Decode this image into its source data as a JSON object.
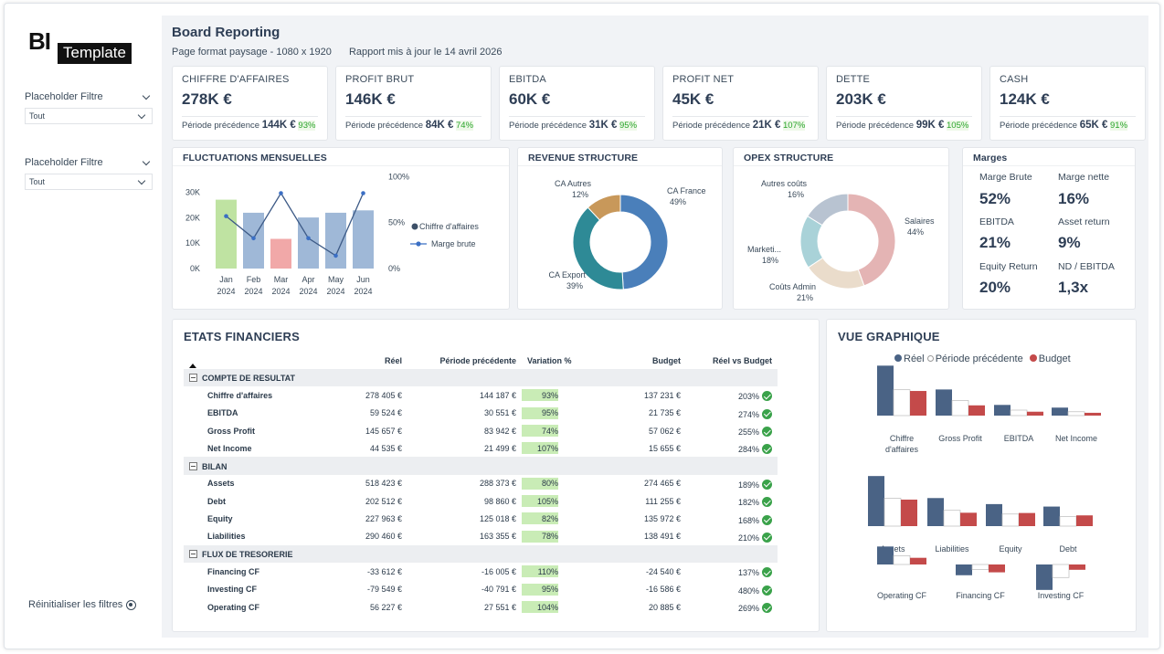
{
  "logo": {
    "bi": "BI",
    "template": "Template"
  },
  "filters": [
    {
      "label": "Placeholder Filtre",
      "value": "Tout"
    },
    {
      "label": "Placeholder Filtre",
      "value": "Tout"
    }
  ],
  "reset_label": "Réinitialiser les filtres",
  "header": {
    "title": "Board Reporting",
    "format": "Page format paysage - 1080 x 1920",
    "updated": "Rapport mis à jour le 14 avril 2026"
  },
  "kpis": [
    {
      "label": "CHIFFRE D'AFFAIRES",
      "value": "278K €",
      "prev_label": "Période précédence",
      "prev_value": "144K €",
      "pct": "93%"
    },
    {
      "label": "PROFIT BRUT",
      "value": "146K €",
      "prev_label": "Période précédence",
      "prev_value": "84K €",
      "pct": "74%"
    },
    {
      "label": "EBITDA",
      "value": "60K €",
      "prev_label": "Période précédence",
      "prev_value": "31K €",
      "pct": "95%"
    },
    {
      "label": "PROFIT NET",
      "value": "45K €",
      "prev_label": "Période précédence",
      "prev_value": "21K €",
      "pct": "107%"
    },
    {
      "label": "DETTE",
      "value": "203K €",
      "prev_label": "Période précédence",
      "prev_value": "99K €",
      "pct": "105%"
    },
    {
      "label": "CASH",
      "value": "124K €",
      "prev_label": "Période précédence",
      "prev_value": "65K €",
      "pct": "91%"
    }
  ],
  "colors": {
    "bar_blue": "#9fb8d7",
    "bar_green": "#bfe3a2",
    "bar_red": "#f1a8a8",
    "line": "#3d5a86",
    "reel": "#4a6385",
    "prev": "#ffffff",
    "budget": "#c44a4a"
  },
  "chart_data": [
    {
      "id": "monthly",
      "type": "bar",
      "title": "FLUCTUATIONS MENSUELLES",
      "categories": [
        "Jan\n2024",
        "Feb\n2024",
        "Mar\n2024",
        "Apr\n2024",
        "May\n2024",
        "Jun\n2024"
      ],
      "series": [
        {
          "name": "Chiffre d'affaires",
          "values": [
            29000,
            23500,
            12500,
            21500,
            23500,
            24500
          ]
        },
        {
          "name": "Marge brute",
          "values": [
            57,
            33,
            82,
            33,
            14,
            82
          ]
        }
      ],
      "y_ticks": [
        "0K",
        "10K",
        "20K",
        "30K"
      ],
      "y2_ticks": [
        "0%",
        "50%",
        "100%"
      ],
      "ylim": [
        0,
        35000
      ],
      "y2lim": [
        0,
        100
      ]
    },
    {
      "id": "revenue",
      "type": "pie",
      "title": "REVENUE STRUCTURE",
      "slices": [
        {
          "name": "CA France",
          "value": 49,
          "pct": "49%",
          "color": "#4a7fba"
        },
        {
          "name": "CA Export",
          "value": 39,
          "pct": "39%",
          "color": "#2e8a96"
        },
        {
          "name": "CA Autres",
          "value": 12,
          "pct": "12%",
          "color": "#c8985a"
        }
      ]
    },
    {
      "id": "opex",
      "type": "pie",
      "title": "OPEX STRUCTURE",
      "slices": [
        {
          "name": "Salaires",
          "value": 44,
          "pct": "44%",
          "color": "#e4b4b4"
        },
        {
          "name": "Coûts Admin",
          "value": 21,
          "pct": "21%",
          "color": "#eadccb"
        },
        {
          "name": "Marketi...",
          "value": 18,
          "pct": "18%",
          "color": "#a9d2d8"
        },
        {
          "name": "Autres coûts",
          "value": 16,
          "pct": "16%",
          "color": "#b8c3d1"
        }
      ]
    },
    {
      "id": "vue",
      "type": "bar",
      "title": "VUE GRAPHIQUE",
      "series_names": [
        "Réel",
        "Période précédente",
        "Budget"
      ],
      "groups": [
        {
          "name": "Chiffre d'affaires",
          "values": [
            278405,
            144187,
            137231
          ]
        },
        {
          "name": "Gross Profit",
          "values": [
            145657,
            83942,
            57062
          ]
        },
        {
          "name": "EBITDA",
          "values": [
            59524,
            30551,
            21735
          ]
        },
        {
          "name": "Net Income",
          "values": [
            44535,
            21499,
            15655
          ]
        },
        {
          "name": "Assets",
          "values": [
            518423,
            288373,
            274465
          ]
        },
        {
          "name": "Liabilities",
          "values": [
            290460,
            163355,
            138491
          ]
        },
        {
          "name": "Equity",
          "values": [
            227963,
            125018,
            135972
          ]
        },
        {
          "name": "Debt",
          "values": [
            202512,
            98860,
            111255
          ]
        },
        {
          "name": "Operating CF",
          "values": [
            56227,
            27551,
            20885
          ]
        },
        {
          "name": "Financing CF",
          "values": [
            -33612,
            -16005,
            -24540
          ]
        },
        {
          "name": "Investing CF",
          "values": [
            -79549,
            -40791,
            -16586
          ]
        }
      ]
    }
  ],
  "margins": {
    "title": "Marges",
    "items": [
      {
        "label": "Marge Brute",
        "value": "52%"
      },
      {
        "label": "Marge nette",
        "value": "16%"
      },
      {
        "label": "EBITDA",
        "value": "21%"
      },
      {
        "label": "Asset return",
        "value": "9%"
      },
      {
        "label": "Equity Return",
        "value": "20%"
      },
      {
        "label": "ND / EBITDA",
        "value": "1,3x"
      }
    ]
  },
  "financials": {
    "title": "ETATS FINANCIERS",
    "columns": [
      "Réel",
      "Période précédente",
      "Variation %",
      "Budget",
      "Réel vs Budget"
    ],
    "sections": [
      {
        "name": "COMPTE DE RESULTAT",
        "rows": [
          {
            "label": "Chiffre d'affaires",
            "reel": "278 405 €",
            "prev": "144 187 €",
            "var": "93%",
            "var_value": 93,
            "budget": "137 231 €",
            "rvb": "203%"
          },
          {
            "label": "EBITDA",
            "reel": "59 524 €",
            "prev": "30 551 €",
            "var": "95%",
            "var_value": 95,
            "budget": "21 735 €",
            "rvb": "274%"
          },
          {
            "label": "Gross Profit",
            "reel": "145 657 €",
            "prev": "83 942 €",
            "var": "74%",
            "var_value": 74,
            "budget": "57 062 €",
            "rvb": "255%"
          },
          {
            "label": "Net Income",
            "reel": "44 535 €",
            "prev": "21 499 €",
            "var": "107%",
            "var_value": 107,
            "budget": "15 655 €",
            "rvb": "284%"
          }
        ]
      },
      {
        "name": "BILAN",
        "rows": [
          {
            "label": "Assets",
            "reel": "518 423 €",
            "prev": "288 373 €",
            "var": "80%",
            "var_value": 80,
            "budget": "274 465 €",
            "rvb": "189%"
          },
          {
            "label": "Debt",
            "reel": "202 512 €",
            "prev": "98 860 €",
            "var": "105%",
            "var_value": 105,
            "budget": "111 255 €",
            "rvb": "182%"
          },
          {
            "label": "Equity",
            "reel": "227 963 €",
            "prev": "125 018 €",
            "var": "82%",
            "var_value": 82,
            "budget": "135 972 €",
            "rvb": "168%"
          },
          {
            "label": "Liabilities",
            "reel": "290 460 €",
            "prev": "163 355 €",
            "var": "78%",
            "var_value": 78,
            "budget": "138 491 €",
            "rvb": "210%"
          }
        ]
      },
      {
        "name": "FLUX DE TRESORERIE",
        "rows": [
          {
            "label": "Financing CF",
            "reel": "-33 612 €",
            "prev": "-16 005 €",
            "var": "110%",
            "var_value": 110,
            "budget": "-24 540 €",
            "rvb": "137%"
          },
          {
            "label": "Investing CF",
            "reel": "-79 549 €",
            "prev": "-40 791 €",
            "var": "95%",
            "var_value": 95,
            "budget": "-16 586 €",
            "rvb": "480%"
          },
          {
            "label": "Operating CF",
            "reel": "56 227 €",
            "prev": "27 551 €",
            "var": "104%",
            "var_value": 104,
            "budget": "20 885 €",
            "rvb": "269%"
          }
        ]
      }
    ]
  }
}
